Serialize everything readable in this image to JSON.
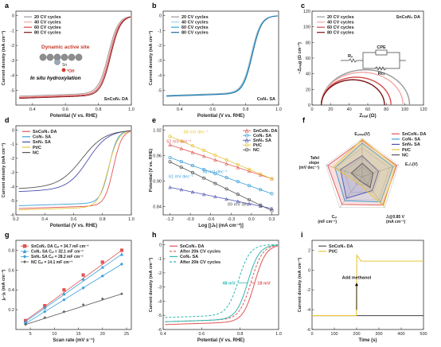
{
  "colors": {
    "c20": "#9a9a9a",
    "c40": "#f2a8a8",
    "c60": "#d94848",
    "c80": "#7a1418",
    "b20": "#9a9a9a",
    "b40": "#9ad7ef",
    "b60": "#33a8d8",
    "b80": "#1b6aa3",
    "sncon": "#e05454",
    "con": "#3d9fd9",
    "snn": "#4a4fb0",
    "ptc": "#e8c53a",
    "nc": "#555555",
    "after": "#2fb8b0"
  },
  "chart_data": [
    {
      "id": "a",
      "type": "line",
      "panel_label": "a",
      "xlabel": "Potential (V vs. RHE)",
      "ylabel": "Current density (mA cm⁻²)",
      "xlim": [
        0.3,
        1.0
      ],
      "ylim": [
        -6,
        0.3
      ],
      "xticks": [
        "0.4",
        "0.6",
        "0.8",
        "1.0"
      ],
      "yticks": [
        "0",
        "-1",
        "-2",
        "-3",
        "-4",
        "-5"
      ],
      "legend": [
        "20 CV cycles",
        "40 CV cycles",
        "60 CV cycles",
        "80 CV cycles"
      ],
      "legend_position": "top-left",
      "corner_label": "SnCoN₄ DA",
      "inset_title": "Dynamic active site",
      "inset_sn": "Sn",
      "inset_oh": "*OH",
      "inset_caption": "In situ hydroxylation",
      "series": [
        {
          "name": "20 CV cycles",
          "half_wave": 0.86,
          "limit": -5.15
        },
        {
          "name": "40 CV cycles",
          "half_wave": 0.865,
          "limit": -5.2
        },
        {
          "name": "60 CV cycles",
          "half_wave": 0.87,
          "limit": -5.25
        },
        {
          "name": "80 CV cycles",
          "half_wave": 0.875,
          "limit": -5.3
        }
      ]
    },
    {
      "id": "b",
      "type": "line",
      "panel_label": "b",
      "xlabel": "Potential (V vs. RHE)",
      "ylabel": "Current density (mA cm⁻²)",
      "xlim": [
        0.3,
        1.0
      ],
      "ylim": [
        -6,
        0.3
      ],
      "xticks": [
        "0.4",
        "0.6",
        "0.8",
        "1.0"
      ],
      "yticks": [
        "0",
        "-1",
        "-2",
        "-3",
        "-4",
        "-5"
      ],
      "legend": [
        "20 CV cycles",
        "40 CV cycles",
        "60 CV cycles",
        "80 CV cycles"
      ],
      "legend_position": "top-left",
      "corner_label": "CoN₄ SA",
      "series": [
        {
          "name": "20 CV cycles",
          "half_wave": 0.835,
          "limit": -5.1
        },
        {
          "name": "40 CV cycles",
          "half_wave": 0.835,
          "limit": -5.1
        },
        {
          "name": "60 CV cycles",
          "half_wave": 0.835,
          "limit": -5.1
        },
        {
          "name": "80 CV cycles",
          "half_wave": 0.835,
          "limit": -5.1
        }
      ]
    },
    {
      "id": "c",
      "type": "scatter",
      "panel_label": "c",
      "xlabel": "Zᵣₑₐₗ (Ω)",
      "ylabel": "−Zᵢₘₐg (Ω cm⁻²)",
      "xlim": [
        0,
        120
      ],
      "ylim": [
        0,
        120
      ],
      "xticks": [
        "0",
        "20",
        "40",
        "60",
        "80",
        "100",
        "120"
      ],
      "yticks": [
        "0",
        "20",
        "40",
        "60",
        "80",
        "100",
        "120"
      ],
      "legend": [
        "20 CV cycles",
        "40 CV cycles",
        "60 CV cycles",
        "80 CV cycles"
      ],
      "legend_position": "top-left",
      "corner_label": "SnCoN₄ DA",
      "circuit_cpe": "CPE",
      "circuit_rs": "Rₛ",
      "circuit_rct": "Rᴄₜ",
      "series": [
        {
          "name": "20 CV cycles",
          "start": 10,
          "diameter": 95
        },
        {
          "name": "40 CV cycles",
          "start": 10,
          "diameter": 88
        },
        {
          "name": "60 CV cycles",
          "start": 10,
          "diameter": 75
        },
        {
          "name": "80 CV cycles",
          "start": 10,
          "diameter": 68
        }
      ]
    },
    {
      "id": "d",
      "type": "line",
      "panel_label": "d",
      "xlabel": "Potential (V vs. RHE)",
      "ylabel": "Current density (mA cm⁻²)",
      "xlim": [
        0.2,
        1.0
      ],
      "ylim": [
        -6,
        0.3
      ],
      "xticks": [
        "0.2",
        "0.4",
        "0.6",
        "0.8",
        "1.0"
      ],
      "yticks": [
        "0",
        "-1",
        "-2",
        "-3",
        "-4",
        "-5",
        "-6"
      ],
      "legend": [
        "SnCoN₄ DA",
        "CoN₄ SA",
        "SnN₄ SA",
        "Pt/C",
        "NC"
      ],
      "legend_position": "top-left",
      "series": [
        {
          "name": "SnCoN₄ DA",
          "half_wave": 0.875,
          "limit": -5.3
        },
        {
          "name": "CoN₄ SA",
          "half_wave": 0.845,
          "limit": -5.1
        },
        {
          "name": "SnN₄ SA",
          "half_wave": 0.7,
          "limit": -4.1
        },
        {
          "name": "Pt/C",
          "half_wave": 0.84,
          "limit": -5.4
        },
        {
          "name": "NC",
          "half_wave": 0.66,
          "limit": -3.9
        }
      ]
    },
    {
      "id": "e",
      "type": "scatter",
      "panel_label": "e",
      "xlabel": "Log [|Jₖ| (mA cm⁻²)]",
      "ylabel": "Potential (V vs. RHE)",
      "xlim": [
        -1.3,
        0.4
      ],
      "ylim": [
        0.82,
        1.03
      ],
      "xticks": [
        "-1.2",
        "-0.9",
        "-0.6",
        "-0.3",
        "0.0",
        "0.3"
      ],
      "yticks": [
        "0.84",
        "0.90",
        "0.96",
        "1.02"
      ],
      "legend": [
        "SnCoN₄ DA",
        "CoN₄ SA",
        "SnN₄ SA",
        "Pt/C",
        "NC"
      ],
      "legend_position": "top-right",
      "annotations": [
        "52 mV dec⁻¹",
        "68 mV dec⁻¹",
        "58 mV dec⁻¹",
        "61 mV dec⁻¹",
        "89 mV dec⁻¹"
      ],
      "series": [
        {
          "name": "SnCoN₄ DA",
          "x": [
            -1.2,
            0.3
          ],
          "y": [
            0.985,
            0.905
          ]
        },
        {
          "name": "CoN₄ SA",
          "x": [
            -1.2,
            0.3
          ],
          "y": [
            0.955,
            0.87
          ]
        },
        {
          "name": "SnN₄ SA",
          "x": [
            -1.2,
            0.3
          ],
          "y": [
            0.885,
            0.835
          ]
        },
        {
          "name": "Pt/C",
          "x": [
            -1.2,
            0.3
          ],
          "y": [
            1.005,
            0.905
          ]
        },
        {
          "name": "NC",
          "x": [
            -1.2,
            0.3
          ],
          "y": [
            0.945,
            0.83
          ]
        }
      ]
    },
    {
      "id": "f",
      "type": "radar",
      "panel_label": "f",
      "axes": [
        "Eₒₙₛₑₜ(V)",
        "E₁/₂(V)",
        "Jₗ@0.85 V (mA cm⁻²)",
        "C₍ₑₗ₎ (mF cm⁻²)",
        "Tafel slope (mV dec⁻¹)"
      ],
      "axis_lines": [
        [
          "Eₒₙₛₑₜ(V)"
        ],
        [
          "E₁/₂(V)"
        ],
        [
          "Jₗ@0.85 V",
          "(mA cm⁻²)"
        ],
        [
          "Cₑₗ",
          "(mF cm⁻²)"
        ],
        [
          "Tafel",
          "slope",
          "(mV dec⁻¹)"
        ]
      ],
      "legend": [
        "SnCoN₄ DA",
        "CoN₄ SA",
        "SnN₄ SA",
        "Pt/C",
        "NC"
      ],
      "legend_position": "top-right",
      "series": [
        {
          "name": "SnCoN₄ DA",
          "values": [
            0.95,
            0.95,
            0.92,
            0.9,
            0.95
          ]
        },
        {
          "name": "CoN₄ SA",
          "values": [
            0.88,
            0.85,
            0.82,
            0.78,
            0.75
          ]
        },
        {
          "name": "SnN₄ SA",
          "values": [
            0.55,
            0.45,
            0.45,
            0.7,
            0.6
          ]
        },
        {
          "name": "Pt/C",
          "values": [
            0.98,
            0.92,
            0.95,
            0.2,
            0.8
          ]
        },
        {
          "name": "NC",
          "values": [
            0.35,
            0.3,
            0.35,
            0.12,
            0.3
          ]
        }
      ]
    },
    {
      "id": "g",
      "type": "scatter",
      "panel_label": "g",
      "xlabel": "Scan rate (mV s⁻¹)",
      "ylabel": "jₐ−jₖ (mA cm⁻²)",
      "xlim": [
        2,
        26
      ],
      "ylim": [
        0,
        0.9
      ],
      "xticks": [
        "5",
        "10",
        "15",
        "20",
        "25"
      ],
      "yticks": [
        "0.2",
        "0.4",
        "0.6",
        "0.8"
      ],
      "legend": [
        "SnCoN₄ DA  Cₑₗ = 34.7 mF cm⁻²",
        "CoN₄ SA  Cₑₗ = 32.1 mF cm⁻²",
        "SnN₄ SA  Cₑₗ = 28.2 mF cm⁻²",
        "NC  Cₑₗ = 14.1 mF cm⁻²"
      ],
      "legend_position": "top-left",
      "x": [
        4,
        8,
        12,
        16,
        20,
        24
      ],
      "series": [
        {
          "name": "SnCoN₄ DA",
          "values": [
            0.09,
            0.24,
            0.4,
            0.55,
            0.68,
            0.8
          ]
        },
        {
          "name": "CoN₄ SA",
          "values": [
            0.08,
            0.22,
            0.36,
            0.51,
            0.63,
            0.76
          ]
        },
        {
          "name": "SnN₄ SA",
          "values": [
            0.06,
            0.18,
            0.3,
            0.42,
            0.54,
            0.66
          ]
        },
        {
          "name": "NC",
          "values": [
            0.05,
            0.12,
            0.18,
            0.25,
            0.31,
            0.36
          ]
        }
      ]
    },
    {
      "id": "h",
      "type": "line",
      "panel_label": "h",
      "xlabel": "Potential (V vs. RHE)",
      "ylabel": "Current density (mA cm⁻²)",
      "xlim": [
        0.4,
        1.0
      ],
      "ylim": [
        -6,
        0.3
      ],
      "xticks": [
        "0.4",
        "0.6",
        "0.8",
        "1.0"
      ],
      "yticks": [
        "0",
        "-1",
        "-2",
        "-3",
        "-4",
        "-5",
        "-6"
      ],
      "legend": [
        "SnCoN₄ DA",
        "After 20k CV cycles",
        "CoN₄ SA",
        "After 20k CV cycles"
      ],
      "legend_position": "top-left",
      "annotations": [
        "48 mV",
        "18 mV"
      ],
      "series": [
        {
          "name": "SnCoN₄ DA",
          "half_wave": 0.875,
          "limit": -5.4
        },
        {
          "name": "After 20k CV cycles",
          "half_wave": 0.857,
          "limit": -5.2
        },
        {
          "name": "CoN₄ SA",
          "half_wave": 0.84,
          "limit": -5.2
        },
        {
          "name": "After 20k CV cycles",
          "half_wave": 0.792,
          "limit": -4.9
        }
      ]
    },
    {
      "id": "i",
      "type": "line",
      "panel_label": "i",
      "xlabel": "Time (s)",
      "ylabel": "Current density (mA cm⁻²)",
      "xlim": [
        0,
        500
      ],
      "ylim": [
        -6,
        3
      ],
      "xticks": [
        "0",
        "100",
        "200",
        "300",
        "400",
        "500"
      ],
      "yticks": [
        "2",
        "0",
        "-2",
        "-4",
        "-6"
      ],
      "legend": [
        "SnCoN₄ DA",
        "Pt/C"
      ],
      "legend_position": "top-left",
      "annotation": "Add methanol",
      "annotation_x": 200,
      "series": [
        {
          "name": "SnCoN₄ DA",
          "x": [
            0,
            200,
            500
          ],
          "y": [
            -4.6,
            -4.6,
            -4.6
          ]
        },
        {
          "name": "Pt/C",
          "x": [
            0,
            199,
            201,
            220,
            500
          ],
          "y": [
            -4.6,
            -4.6,
            1.5,
            0.9,
            0.9
          ]
        }
      ]
    }
  ]
}
